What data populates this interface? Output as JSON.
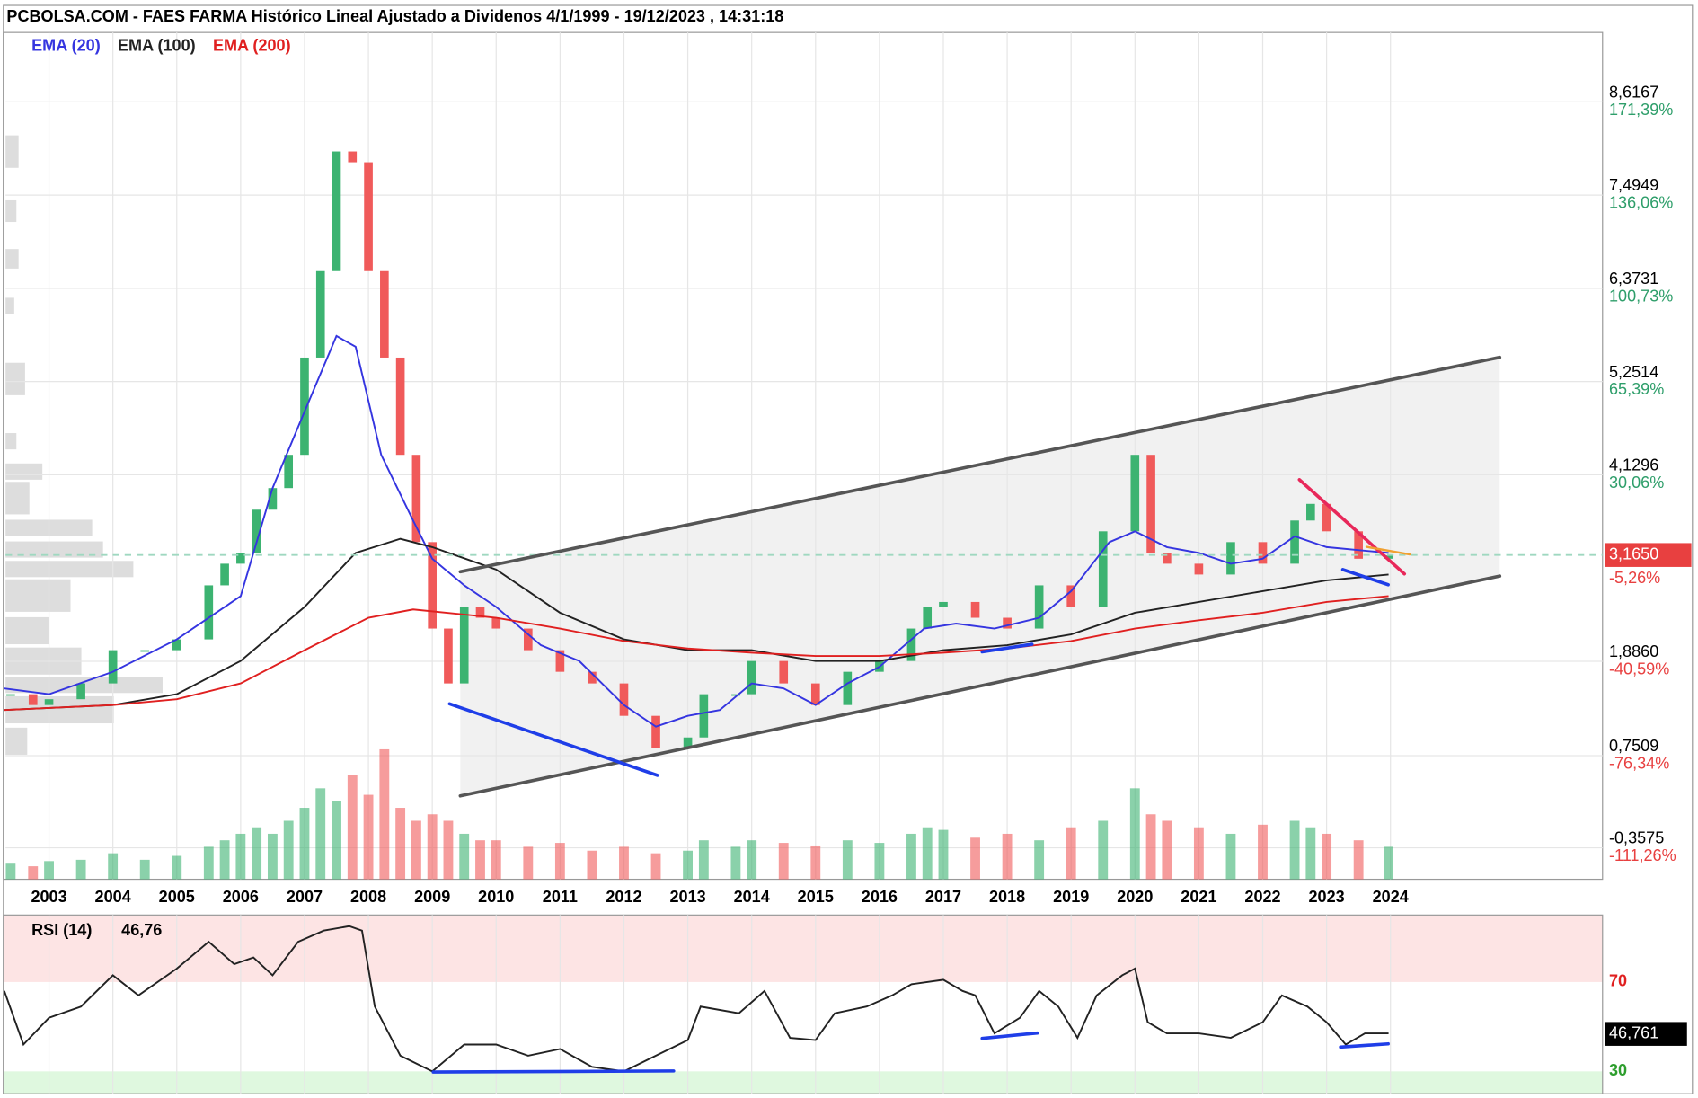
{
  "chart_data": [
    {
      "type": "candlestick",
      "title": "PCBOLSA.COM - FAES FARMA Histórico Lineal Ajustado a Dividenos 4/1/1999 - 19/12/2023 , 14:31:18",
      "x": [
        2002.4,
        2002.75,
        2003.0,
        2003.5,
        2004.0,
        2004.5,
        2005.0,
        2005.5,
        2005.75,
        2006.0,
        2006.25,
        2006.5,
        2006.75,
        2007.0,
        2007.25,
        2007.5,
        2007.75,
        2008.0,
        2008.25,
        2008.5,
        2008.75,
        2009.0,
        2009.25,
        2009.5,
        2009.75,
        2010.0,
        2010.5,
        2011.0,
        2011.5,
        2012.0,
        2012.5,
        2013.0,
        2013.25,
        2013.75,
        2014.0,
        2014.5,
        2015.0,
        2015.5,
        2016.0,
        2016.5,
        2016.75,
        2017.0,
        2017.5,
        2018.0,
        2018.5,
        2019.0,
        2019.5,
        2020.0,
        2020.25,
        2020.5,
        2021.0,
        2021.5,
        2022.0,
        2022.5,
        2022.75,
        2023.0,
        2023.5,
        2023.97
      ],
      "close": [
        1.49,
        1.36,
        1.43,
        1.62,
        2.02,
        2.02,
        2.15,
        2.8,
        3.06,
        3.19,
        3.71,
        3.97,
        4.37,
        5.54,
        6.58,
        8.02,
        7.89,
        6.58,
        5.54,
        4.37,
        3.32,
        2.28,
        1.62,
        2.54,
        2.41,
        2.28,
        2.02,
        1.76,
        1.62,
        1.23,
        0.84,
        0.97,
        1.49,
        1.49,
        1.89,
        1.62,
        1.36,
        1.76,
        1.89,
        2.28,
        2.54,
        2.6,
        2.41,
        2.28,
        2.8,
        2.54,
        3.45,
        4.37,
        3.19,
        3.06,
        2.93,
        3.32,
        3.06,
        3.58,
        3.78,
        3.45,
        3.12,
        3.16
      ],
      "volume": [
        12,
        10,
        14,
        15,
        20,
        15,
        18,
        25,
        30,
        35,
        40,
        35,
        45,
        55,
        70,
        60,
        80,
        65,
        100,
        55,
        45,
        50,
        45,
        35,
        30,
        30,
        25,
        28,
        22,
        25,
        20,
        22,
        30,
        25,
        30,
        28,
        26,
        30,
        28,
        35,
        40,
        38,
        32,
        35,
        30,
        40,
        45,
        70,
        50,
        45,
        40,
        35,
        42,
        45,
        40,
        35,
        30,
        25
      ],
      "up_color": "#3cb371",
      "down_color": "#f05a5a",
      "series": [
        {
          "name": "EMA (20)",
          "color": "#3535e0",
          "x": [
            2002.3,
            2003,
            2004,
            2005,
            2006,
            2006.5,
            2007,
            2007.5,
            2007.8,
            2008.2,
            2008.7,
            2009,
            2009.5,
            2010,
            2010.7,
            2011.3,
            2012,
            2012.5,
            2013,
            2013.5,
            2014,
            2014.5,
            2015,
            2015.5,
            2016,
            2016.7,
            2017.2,
            2017.8,
            2018.5,
            2019,
            2019.6,
            2020,
            2020.5,
            2021,
            2021.5,
            2022,
            2022.5,
            2023,
            2023.97
          ],
          "values": [
            1.56,
            1.49,
            1.76,
            2.15,
            2.67,
            3.97,
            4.89,
            5.8,
            5.67,
            4.37,
            3.58,
            3.12,
            2.8,
            2.54,
            2.08,
            1.89,
            1.36,
            1.1,
            1.23,
            1.3,
            1.62,
            1.56,
            1.36,
            1.62,
            1.82,
            2.28,
            2.34,
            2.28,
            2.41,
            2.73,
            3.32,
            3.45,
            3.26,
            3.19,
            3.06,
            3.12,
            3.39,
            3.26,
            3.19
          ]
        },
        {
          "name": "EMA (100)",
          "color": "#222222",
          "x": [
            2002.3,
            2004,
            2005,
            2006,
            2007,
            2007.8,
            2008.5,
            2009,
            2010,
            2011,
            2012,
            2013,
            2014,
            2015,
            2016,
            2017,
            2018,
            2019,
            2020,
            2021,
            2022,
            2023,
            2023.97
          ],
          "values": [
            1.3,
            1.36,
            1.49,
            1.89,
            2.54,
            3.19,
            3.36,
            3.26,
            2.99,
            2.47,
            2.15,
            2.02,
            2.02,
            1.89,
            1.89,
            2.02,
            2.08,
            2.21,
            2.47,
            2.6,
            2.73,
            2.86,
            2.93
          ]
        },
        {
          "name": "EMA (200)",
          "color": "#e02020",
          "x": [
            2002.3,
            2004,
            2005,
            2006,
            2007,
            2008,
            2008.7,
            2010,
            2011,
            2012,
            2013,
            2014,
            2015,
            2016,
            2017,
            2018,
            2019,
            2020,
            2021,
            2022,
            2023,
            2023.97
          ],
          "values": [
            1.3,
            1.36,
            1.43,
            1.62,
            2.02,
            2.41,
            2.51,
            2.41,
            2.28,
            2.13,
            2.04,
            1.99,
            1.95,
            1.95,
            1.99,
            2.04,
            2.13,
            2.28,
            2.38,
            2.47,
            2.6,
            2.67
          ]
        }
      ],
      "xlim": [
        2002.32,
        2027.32
      ],
      "xticks": [
        2003,
        2004,
        2005,
        2006,
        2007,
        2008,
        2009,
        2010,
        2011,
        2012,
        2013,
        2014,
        2015,
        2016,
        2017,
        2018,
        2019,
        2020,
        2021,
        2022,
        2023,
        2024
      ],
      "ylim": [
        -0.736,
        9.451
      ],
      "yticks": [
        {
          "value": 8.6167,
          "label": "8,6167"
        },
        {
          "value": 7.4949,
          "label": "7,4949"
        },
        {
          "value": 6.3731,
          "label": "6,3731"
        },
        {
          "value": 5.2514,
          "label": "5,2514"
        },
        {
          "value": 4.1296,
          "label": "4,1296"
        },
        {
          "value": 1.886,
          "label": "1,8860"
        },
        {
          "value": 0.7509,
          "label": "0,7509"
        },
        {
          "value": -0.3575,
          "label": "-0,3575"
        }
      ],
      "y2lim": [
        -123.18,
        197.67
      ],
      "y2ticks": [
        {
          "value": 171.39,
          "label": "171,39%"
        },
        {
          "value": 136.06,
          "label": "136,06%"
        },
        {
          "value": 100.73,
          "label": "100,73%"
        },
        {
          "value": 65.39,
          "label": "65,39%"
        },
        {
          "value": 30.06,
          "label": "30,06%"
        },
        {
          "value": -40.59,
          "label": "-40,59%"
        },
        {
          "value": -76.34,
          "label": "-76,34%"
        },
        {
          "value": -111.26,
          "label": "-111,26%"
        }
      ],
      "last_price": {
        "value": 3.165,
        "label": "3,1650"
      },
      "last_change": {
        "value": -5.26,
        "label": "-5,26%"
      },
      "grid": true
    },
    {
      "type": "line",
      "name": "RSI (14)",
      "value_label": "46,76",
      "color": "#222222",
      "x": [
        2002.3,
        2002.6,
        2003,
        2003.5,
        2004,
        2004.4,
        2005,
        2005.5,
        2005.9,
        2006.2,
        2006.5,
        2006.9,
        2007.3,
        2007.7,
        2007.9,
        2008.1,
        2008.5,
        2009,
        2009.5,
        2010,
        2010.5,
        2011,
        2011.5,
        2012,
        2012.5,
        2013,
        2013.2,
        2013.8,
        2014.2,
        2014.6,
        2015,
        2015.3,
        2015.8,
        2016.2,
        2016.5,
        2017,
        2017.3,
        2017.5,
        2017.8,
        2018.2,
        2018.5,
        2018.8,
        2019.1,
        2019.4,
        2019.8,
        2020,
        2020.2,
        2020.5,
        2021,
        2021.5,
        2022,
        2022.3,
        2022.7,
        2023,
        2023.3,
        2023.6,
        2023.97
      ],
      "values": [
        66,
        42,
        54,
        59,
        73,
        64,
        76,
        88,
        78,
        81,
        73,
        88,
        93,
        95,
        93,
        59,
        37,
        30,
        42,
        42,
        37,
        40,
        32,
        30,
        37,
        44,
        59,
        56,
        66,
        45,
        44,
        56,
        59,
        64,
        69,
        71,
        66,
        64,
        47,
        54,
        66,
        59,
        45,
        64,
        73,
        76,
        52,
        47,
        47,
        45,
        52,
        64,
        59,
        52,
        42,
        47,
        47
      ],
      "xlim": [
        2002.32,
        2027.32
      ],
      "ylim": [
        20,
        100
      ],
      "yticks": [
        70,
        30
      ],
      "last": {
        "value": 46.761,
        "label": "46,761"
      },
      "grid": true
    }
  ]
}
